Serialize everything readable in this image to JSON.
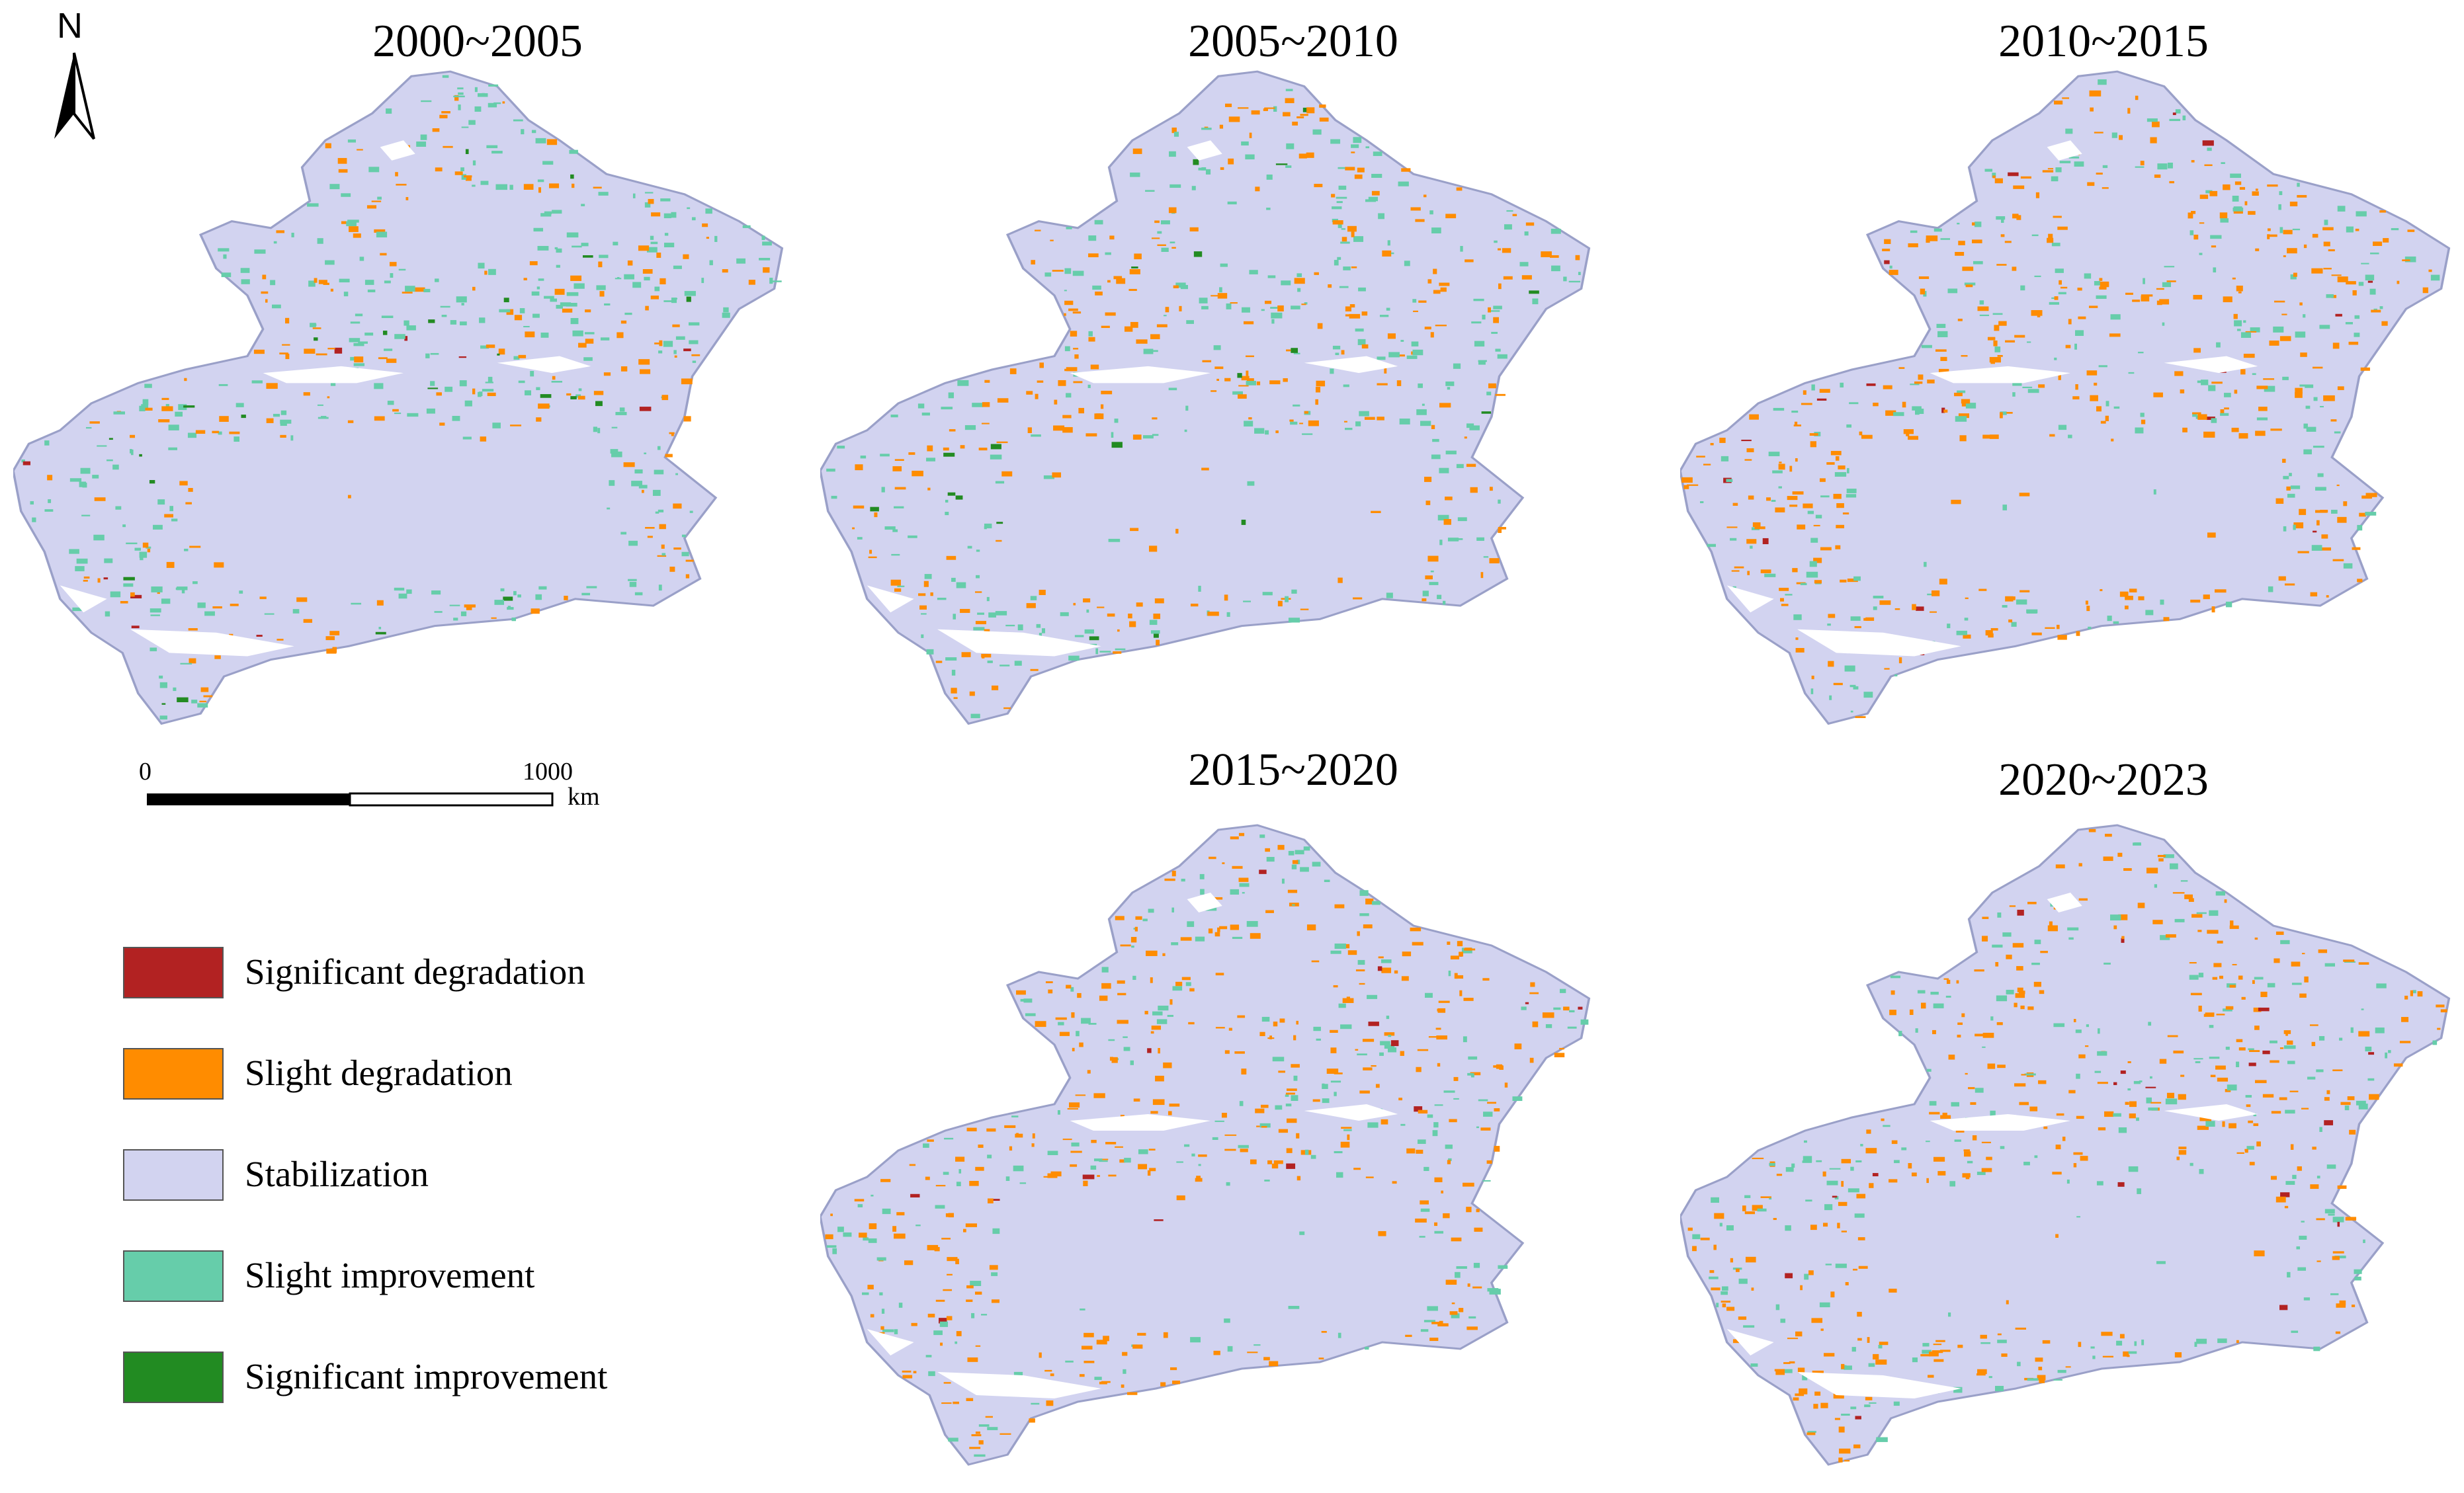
{
  "periods": [
    {
      "label": "2000~2005",
      "dominant_change": "slight-improvement"
    },
    {
      "label": "2005~2010",
      "dominant_change": "mixed"
    },
    {
      "label": "2010~2015",
      "dominant_change": "slight-degradation"
    },
    {
      "label": "2015~2020",
      "dominant_change": "slight-degradation"
    },
    {
      "label": "2020~2023",
      "dominant_change": "slight-degradation"
    }
  ],
  "north_arrow": {
    "label": "N"
  },
  "scale_bar": {
    "start": "0",
    "end": "1000",
    "unit": "km"
  },
  "legend": [
    {
      "label": "Significant degradation",
      "color": "#b22222"
    },
    {
      "label": "Slight degradation",
      "color": "#ff8c00"
    },
    {
      "label": "Stabilization",
      "color": "#d2d3f0"
    },
    {
      "label": "Slight improvement",
      "color": "#66cdaa"
    },
    {
      "label": "Significant improvement",
      "color": "#228b22"
    }
  ]
}
